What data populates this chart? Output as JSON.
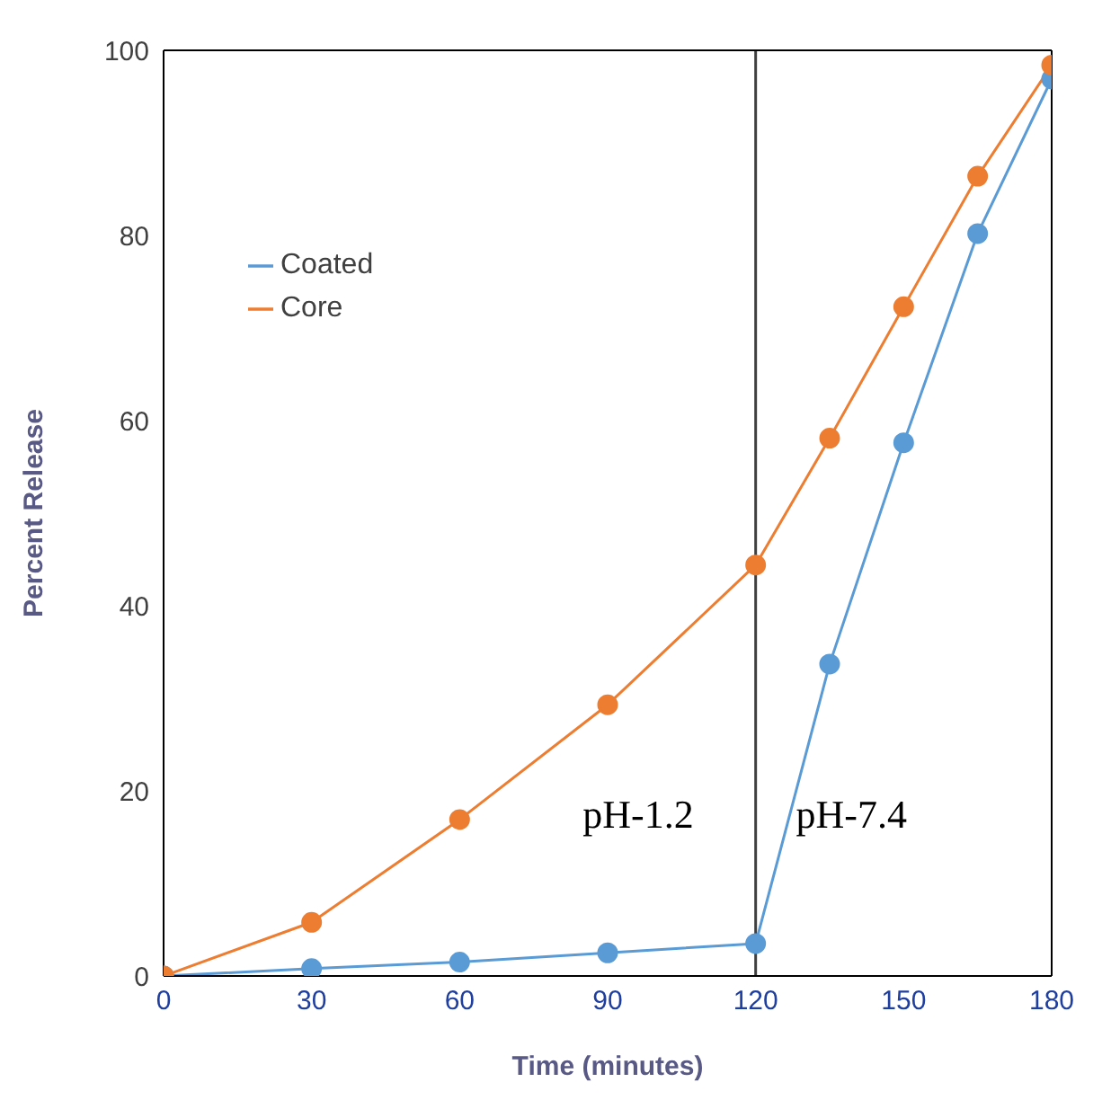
{
  "chart_data": {
    "type": "line",
    "xlabel": "Time (minutes)",
    "ylabel": "Percent Release",
    "xlim": [
      0,
      180
    ],
    "xticks": [
      0,
      30,
      60,
      90,
      120,
      150,
      180
    ],
    "ylim": [
      0,
      100
    ],
    "yticks": [
      0,
      20,
      40,
      60,
      80,
      100
    ],
    "x": [
      0,
      30,
      60,
      90,
      120,
      135,
      150,
      165,
      180
    ],
    "series": [
      {
        "name": "Coated",
        "color": "#5b9bd5",
        "values": [
          0,
          0.8,
          1.5,
          2.5,
          3.5,
          33.7,
          57.6,
          80.2,
          96.9
        ]
      },
      {
        "name": "Core",
        "color": "#ed7d31",
        "values": [
          0,
          5.8,
          16.9,
          29.3,
          44.4,
          58.1,
          72.3,
          86.4,
          98.4
        ]
      }
    ],
    "ref_lines": [
      {
        "axis": "x",
        "value": 120,
        "color": "#404040"
      }
    ],
    "annotations": [
      "pH-1.2",
      "pH-7.4"
    ],
    "marker": "circle",
    "line_style": "solid",
    "grid": false,
    "legend": "top left"
  }
}
